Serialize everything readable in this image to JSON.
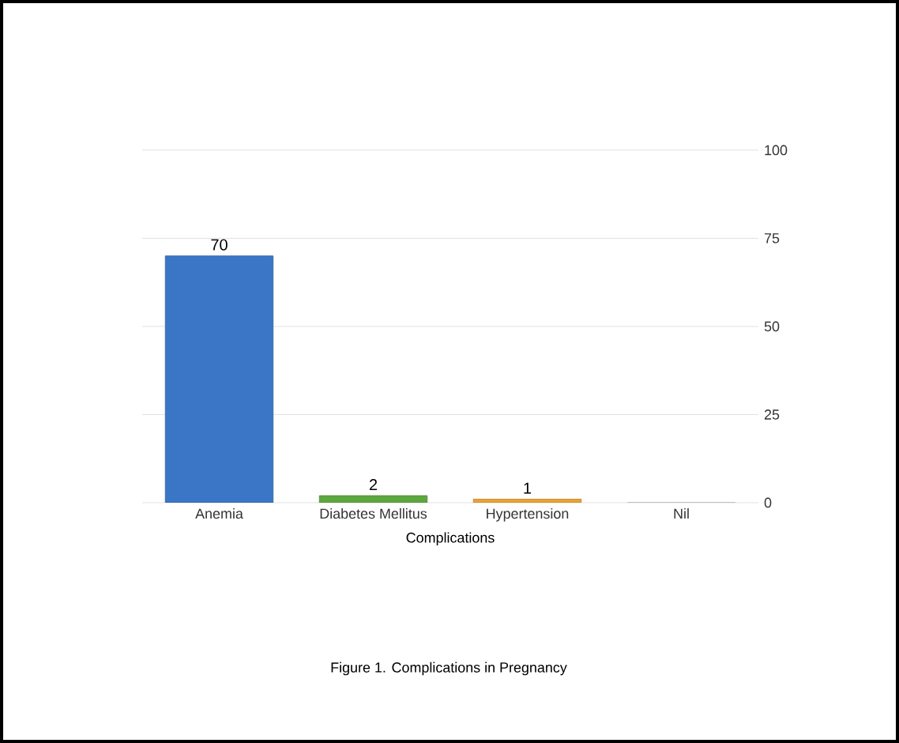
{
  "chart_data": {
    "type": "bar",
    "title": "Figure 1. Complications in Pregnancy",
    "xlabel": "Complications",
    "categories": [
      "Anemia",
      "Diabetes Mellitus",
      "Hypertension",
      "Nil"
    ],
    "values": [
      70,
      2,
      1,
      0
    ],
    "value_labels": [
      "70",
      "2",
      "1",
      null
    ],
    "colors": [
      "#3b76c6",
      "#5da83e",
      "#e9a233",
      "#cccccc"
    ],
    "ylim": [
      0,
      100
    ],
    "yticks": [
      0,
      25,
      50,
      75,
      100
    ],
    "grid": "y"
  }
}
